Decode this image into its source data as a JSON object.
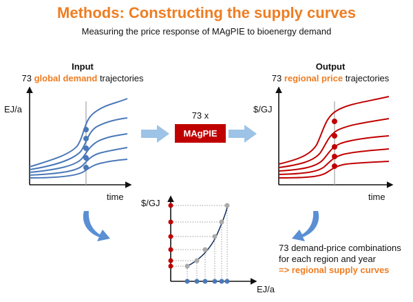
{
  "header": {
    "title": "Methods: Constructing the supply curves",
    "subtitle": "Measuring the price response of MAgPIE to bioenergy demand"
  },
  "input": {
    "heading": "Input",
    "count": "73",
    "highlight": "global demand",
    "suffix": "trajectories",
    "ylabel": "EJ/a",
    "xlabel": "time"
  },
  "output": {
    "heading": "Output",
    "count": "73",
    "highlight": "regional price",
    "suffix": "trajectories",
    "ylabel": "$/GJ",
    "xlabel": "time"
  },
  "model": {
    "multiplier": "73 x",
    "name": "MAgPIE"
  },
  "supply_curve": {
    "ylabel": "$/GJ",
    "xlabel": "EJ/a"
  },
  "note": {
    "line1": "73 demand-price combinations",
    "line2": "for each region and year",
    "result": "=> regional supply curves"
  },
  "colors": {
    "title": "#ee7d22",
    "demand_lines": "#4a78b8",
    "price_lines": "#c00000",
    "arrow": "#9dc3e6",
    "curved_arrow": "#5b8fd4"
  }
}
